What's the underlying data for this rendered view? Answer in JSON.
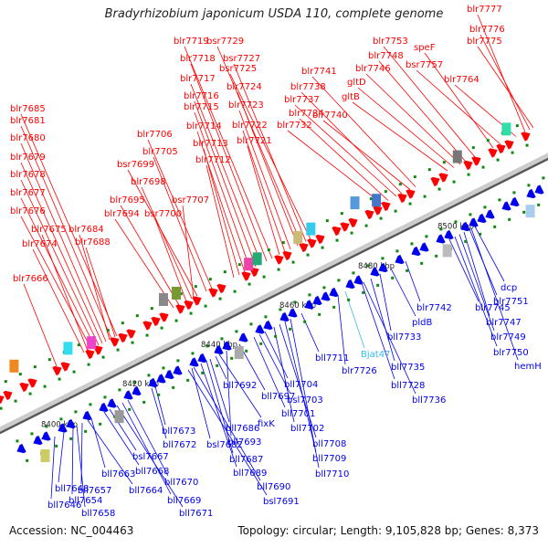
{
  "title": "Bradyrhizobium japonicum USDA 110, complete genome",
  "footer": {
    "accession": "Accession: NC_004463",
    "summary": "Topology: circular; Length: 9,105,828 bp; Genes: 8,373"
  },
  "colors": {
    "forward": "#ff0000",
    "reverse": "#0000ee",
    "highlight": "#33bbee",
    "tick": "#118811"
  },
  "ticks": [
    "8400 kbp",
    "8420 kbp",
    "8440 kbp",
    "8460 kbp",
    "8480 kbp",
    "8500 kbp"
  ],
  "top_labels": [
    "blr7777",
    "blr7776",
    "blr7775",
    "blr7764",
    "bsr7757",
    "speF",
    "blr7753",
    "blr7748",
    "blr7746",
    "gltD",
    "gltB",
    "blr7741",
    "blr7740",
    "blr7738",
    "blr7737",
    "blr7734",
    "blr7732",
    "bsr7729",
    "bsr7727",
    "bsr7725",
    "blr7724",
    "blr7723",
    "blr7722",
    "blr7721",
    "blr7719",
    "blr7718",
    "blr7717",
    "blr7716",
    "blr7715",
    "blr7714",
    "blr7713",
    "blr7712",
    "blr7706",
    "blr7705",
    "bsr7699",
    "blr7698",
    "bsr7707",
    "blr7695",
    "blr7694",
    "bsr7700",
    "blr7685",
    "blr7681",
    "blr7680",
    "blr7679",
    "blr7678",
    "blr7677",
    "blr7676",
    "blr7675",
    "blr7684",
    "blr7688",
    "blr7674",
    "blr7666"
  ],
  "bottom_labels": [
    "dcp",
    "blr7751",
    "blr7747",
    "blr7749",
    "blr7750",
    "hemH",
    "blr7745",
    "blr7742",
    "pldB",
    "Bjat47",
    "bll7733",
    "bll7735",
    "bll7736",
    "blr7726",
    "bll7728",
    "bll7711",
    "bll7704",
    "bsl7703",
    "bll7701",
    "bll7697",
    "bll7702",
    "bll7708",
    "bll7709",
    "bll7710",
    "bll7692",
    "fixK",
    "bll7693",
    "bll7686",
    "bll7673",
    "bll7672",
    "bsl7682",
    "bll7687",
    "bll7689",
    "bll7690",
    "bsl7691",
    "bsl7667",
    "bll7668",
    "bll7670",
    "bll7669",
    "bll7671",
    "bll7663",
    "bll7664",
    "bll7657",
    "bll7648",
    "bll7654",
    "bll7658",
    "bll7646"
  ]
}
